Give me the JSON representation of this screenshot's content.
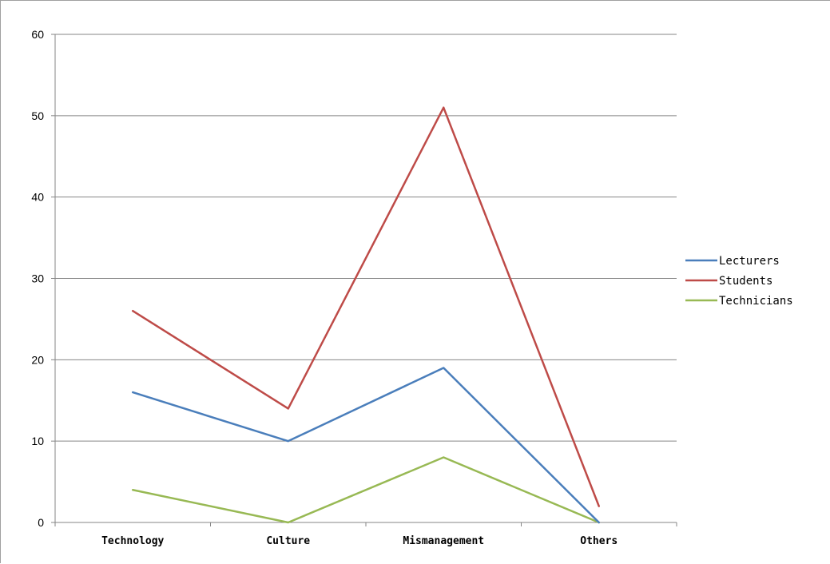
{
  "chart_data": {
    "type": "line",
    "title": "",
    "xlabel": "",
    "ylabel": "",
    "categories": [
      "Technology",
      "Culture",
      "Mismanagement",
      "Others"
    ],
    "ylim": [
      0,
      60
    ],
    "yticks": [
      0,
      10,
      20,
      30,
      40,
      50,
      60
    ],
    "grid": true,
    "legend_position": "right",
    "series": [
      {
        "name": "Lecturers",
        "values": [
          16,
          10,
          19,
          0
        ],
        "color": "#4a7ebb"
      },
      {
        "name": "Students",
        "values": [
          26,
          14,
          51,
          2
        ],
        "color": "#be4b48"
      },
      {
        "name": "Technicians",
        "values": [
          4,
          0,
          8,
          0
        ],
        "color": "#98b954"
      }
    ]
  }
}
